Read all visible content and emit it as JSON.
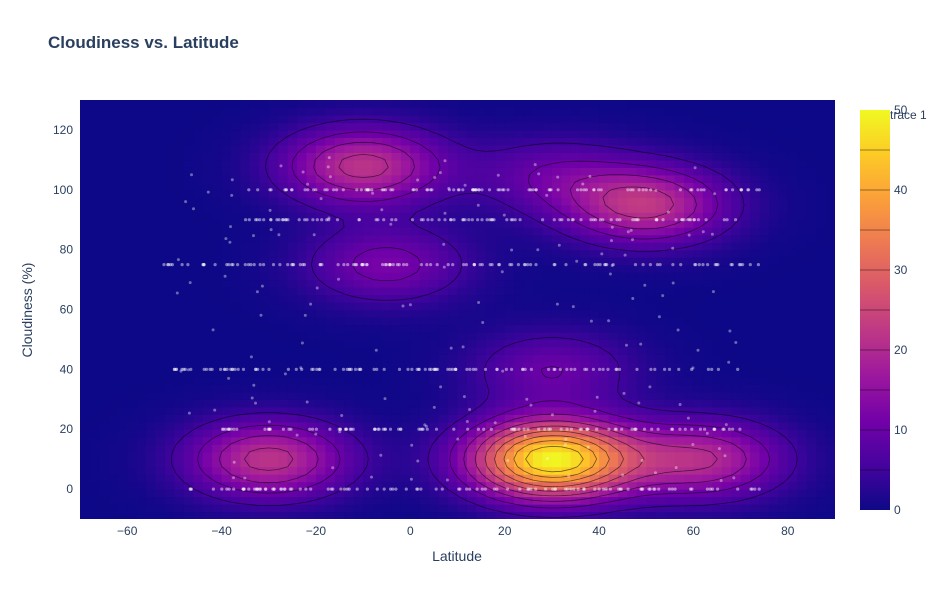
{
  "chart_data": {
    "type": "heatmap",
    "subtype": "2d-density-contour-with-scatter",
    "title": "Cloudiness vs. Latitude",
    "xlabel": "Latitude",
    "ylabel": "Cloudiness (%)",
    "xlim": [
      -70,
      90
    ],
    "ylim": [
      -10,
      130
    ],
    "x_ticks": [
      -60,
      -40,
      -20,
      0,
      20,
      40,
      60,
      80
    ],
    "y_ticks": [
      0,
      20,
      40,
      60,
      80,
      100,
      120
    ],
    "colorbar": {
      "title": "trace 1",
      "range": [
        0,
        50
      ],
      "ticks": [
        0,
        10,
        20,
        30,
        40,
        50
      ],
      "colorscale": [
        "#0d0887",
        "#46039f",
        "#7201a8",
        "#9c179e",
        "#bd3786",
        "#d8576b",
        "#ed7953",
        "#fb9f3a",
        "#fdca26",
        "#f0f921"
      ]
    },
    "density_peaks": [
      {
        "x": 30,
        "y": 10,
        "value": 50
      },
      {
        "x": 50,
        "y": 95,
        "value": 22
      },
      {
        "x": -10,
        "y": 108,
        "value": 22
      },
      {
        "x": -30,
        "y": 10,
        "value": 22
      },
      {
        "x": 62,
        "y": 10,
        "value": 20
      },
      {
        "x": 30,
        "y": 40,
        "value": 10
      },
      {
        "x": -5,
        "y": 75,
        "value": 12
      },
      {
        "x": 30,
        "y": 105,
        "value": 9
      }
    ],
    "scatter_rows": [
      {
        "y": 100,
        "x_from": -35,
        "x_to": 75
      },
      {
        "y": 90,
        "x_from": -35,
        "x_to": 70
      },
      {
        "y": 75,
        "x_from": -55,
        "x_to": 75
      },
      {
        "y": 40,
        "x_from": -50,
        "x_to": 70
      },
      {
        "y": 20,
        "x_from": -40,
        "x_to": 70
      },
      {
        "y": 0,
        "x_from": -47,
        "x_to": 75
      }
    ]
  }
}
